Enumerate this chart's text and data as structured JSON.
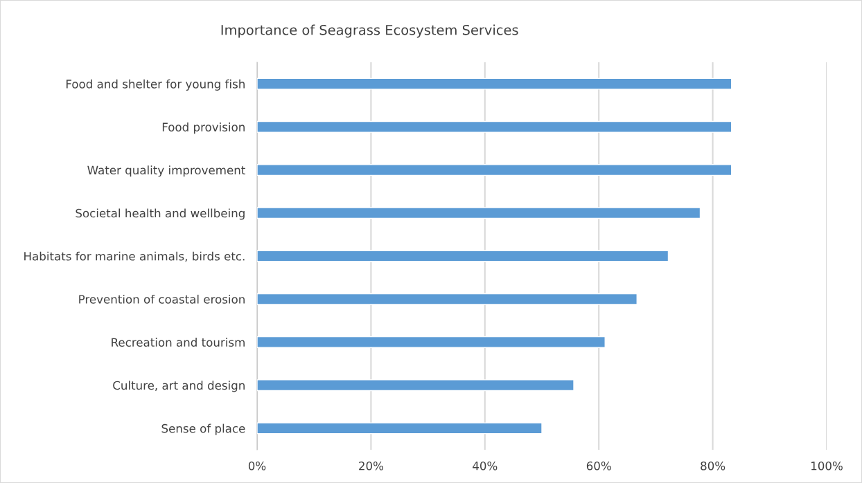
{
  "chart_data": {
    "type": "bar",
    "orientation": "horizontal",
    "title": "Importance of Seagrass Ecosystem Services",
    "categories": [
      "Food and shelter for young fish",
      "Food provision",
      "Water quality improvement",
      "Societal health and wellbeing",
      "Habitats for marine animals, birds etc.",
      "Prevention of coastal erosion",
      "Recreation and tourism",
      "Culture, art and design",
      "Sense of place"
    ],
    "values": [
      83.3,
      83.3,
      83.3,
      77.8,
      72.2,
      66.7,
      61.1,
      55.6,
      50.0
    ],
    "color": "#5b9bd5",
    "xlim": [
      0,
      100
    ],
    "xticks": [
      {
        "value": 0,
        "label": "0%"
      },
      {
        "value": 20,
        "label": "20%"
      },
      {
        "value": 40,
        "label": "40%"
      },
      {
        "value": 60,
        "label": "60%"
      },
      {
        "value": 80,
        "label": "80%"
      },
      {
        "value": 100,
        "label": "100%"
      }
    ],
    "grid": "x"
  }
}
